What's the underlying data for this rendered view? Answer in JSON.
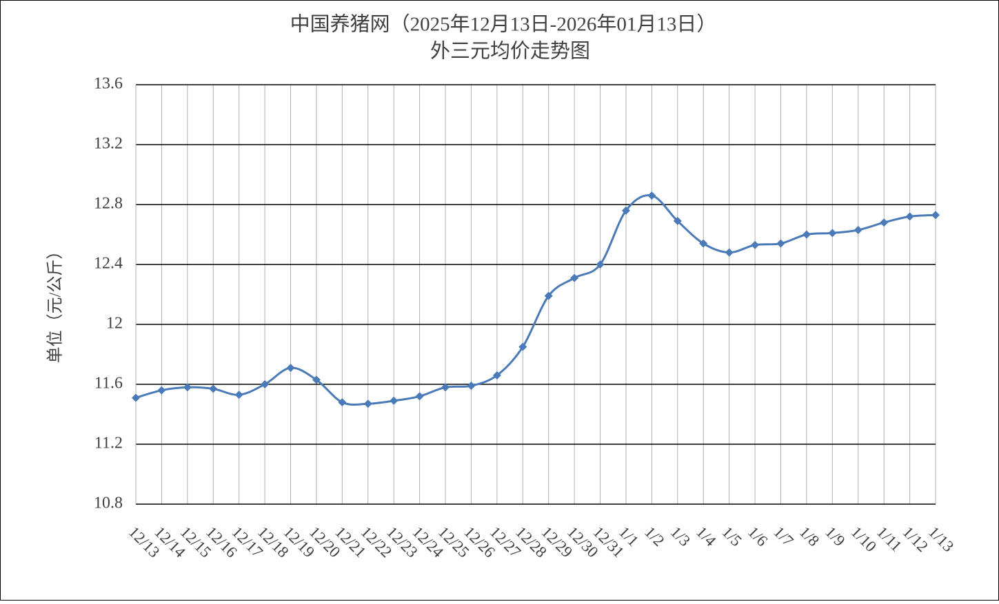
{
  "chart_data": {
    "type": "line",
    "title": "中国养猪网（2025年12月13日-2026年01月13日）",
    "subtitle": "外三元均价走势图",
    "y_label": "单位（元/公斤）",
    "categories": [
      "12/13",
      "12/14",
      "12/15",
      "12/16",
      "12/17",
      "12/18",
      "12/19",
      "12/20",
      "12/21",
      "12/22",
      "12/23",
      "12/24",
      "12/25",
      "12/26",
      "12/27",
      "12/28",
      "12/29",
      "12/30",
      "12/31",
      "1/1",
      "1/2",
      "1/3",
      "1/4",
      "1/5",
      "1/6",
      "1/7",
      "1/8",
      "1/9",
      "1/10",
      "1/11",
      "1/12",
      "1/13"
    ],
    "series": [
      {
        "name": "外三元",
        "color": "#4a7ab8",
        "values": [
          11.51,
          11.56,
          11.58,
          11.57,
          11.53,
          11.6,
          11.71,
          11.63,
          11.48,
          11.47,
          11.49,
          11.52,
          11.58,
          11.59,
          11.66,
          11.85,
          12.19,
          12.31,
          12.4,
          12.76,
          12.86,
          12.69,
          12.54,
          12.48,
          12.53,
          12.54,
          12.6,
          12.61,
          12.63,
          12.68,
          12.72,
          12.73
        ]
      }
    ],
    "ylim": [
      10.8,
      13.6
    ],
    "yticks": [
      10.8,
      11.2,
      11.6,
      12,
      12.4,
      12.8,
      13.2,
      13.6
    ],
    "grid": true,
    "smooth": true
  }
}
